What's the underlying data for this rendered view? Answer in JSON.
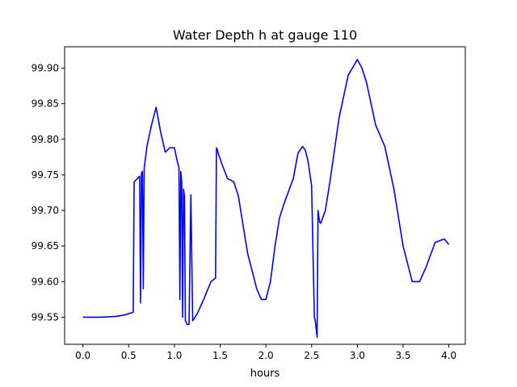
{
  "chart_data": {
    "type": "line",
    "title": "Water Depth h at gauge 110",
    "xlabel": "hours",
    "ylabel": "",
    "xlim": [
      -0.2,
      4.18
    ],
    "ylim": [
      99.512,
      99.93
    ],
    "xticks": [
      0.0,
      0.5,
      1.0,
      1.5,
      2.0,
      2.5,
      3.0,
      3.5,
      4.0
    ],
    "xtick_labels": [
      "0.0",
      "0.5",
      "1.0",
      "1.5",
      "2.0",
      "2.5",
      "3.0",
      "3.5",
      "4.0"
    ],
    "yticks": [
      99.55,
      99.6,
      99.65,
      99.7,
      99.75,
      99.8,
      99.85,
      99.9
    ],
    "ytick_labels": [
      "99.55",
      "99.60",
      "99.65",
      "99.70",
      "99.75",
      "99.80",
      "99.85",
      "99.90"
    ],
    "grid": false,
    "series": [
      {
        "color": "#0000ff",
        "x": [
          0.0,
          0.2,
          0.35,
          0.45,
          0.55,
          0.56,
          0.56,
          0.62,
          0.63,
          0.64,
          0.64,
          0.65,
          0.66,
          0.67,
          0.67,
          0.68,
          0.7,
          0.75,
          0.8,
          0.85,
          0.9,
          0.95,
          1.0,
          1.03,
          1.05,
          1.06,
          1.07,
          1.08,
          1.09,
          1.1,
          1.11,
          1.12,
          1.14,
          1.16,
          1.18,
          1.2,
          1.25,
          1.32,
          1.4,
          1.45,
          1.46,
          1.47,
          1.48,
          1.52,
          1.58,
          1.65,
          1.7,
          1.75,
          1.8,
          1.85,
          1.9,
          1.95,
          2.0,
          2.05,
          2.1,
          2.15,
          2.2,
          2.3,
          2.35,
          2.4,
          2.43,
          2.46,
          2.5,
          2.53,
          2.54,
          2.56,
          2.57,
          2.58,
          2.59,
          2.6,
          2.65,
          2.7,
          2.8,
          2.9,
          3.0,
          3.05,
          3.1,
          3.2,
          3.3,
          3.4,
          3.5,
          3.6,
          3.68,
          3.75,
          3.85,
          3.95,
          4.0
        ],
        "y": [
          99.55,
          99.55,
          99.551,
          99.553,
          99.557,
          99.74,
          99.74,
          99.748,
          99.57,
          99.75,
          99.752,
          99.755,
          99.59,
          99.76,
          99.76,
          99.77,
          99.79,
          99.82,
          99.845,
          99.81,
          99.782,
          99.788,
          99.788,
          99.77,
          99.76,
          99.575,
          99.755,
          99.74,
          99.55,
          99.73,
          99.72,
          99.545,
          99.54,
          99.54,
          99.722,
          99.545,
          99.555,
          99.575,
          99.6,
          99.605,
          99.788,
          99.785,
          99.78,
          99.765,
          99.745,
          99.74,
          99.72,
          99.68,
          99.64,
          99.615,
          99.59,
          99.575,
          99.575,
          99.6,
          99.65,
          99.69,
          99.71,
          99.745,
          99.78,
          99.79,
          99.785,
          99.77,
          99.735,
          99.55,
          99.545,
          99.522,
          99.7,
          99.69,
          99.683,
          99.682,
          99.7,
          99.74,
          99.83,
          99.89,
          99.912,
          99.9,
          99.88,
          99.82,
          99.79,
          99.73,
          99.65,
          99.6,
          99.6,
          99.62,
          99.655,
          99.66,
          99.652
        ]
      }
    ]
  }
}
